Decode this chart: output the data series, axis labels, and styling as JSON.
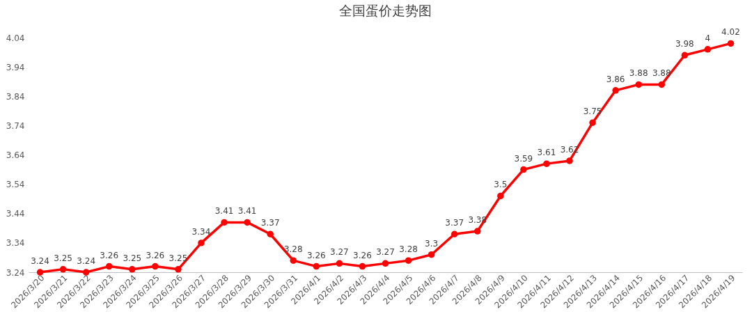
{
  "chart_data": {
    "type": "line",
    "title": "全国蛋价走势图",
    "categories": [
      "2026/3/20",
      "2026/3/21",
      "2026/3/22",
      "2026/3/23",
      "2026/3/24",
      "2026/3/25",
      "2026/3/26",
      "2026/3/27",
      "2026/3/28",
      "2026/3/29",
      "2026/3/30",
      "2026/3/31",
      "2026/4/1",
      "2026/4/2",
      "2026/4/3",
      "2026/4/4",
      "2026/4/5",
      "2026/4/6",
      "2026/4/7",
      "2026/4/8",
      "2026/4/9",
      "2026/4/10",
      "2026/4/11",
      "2026/4/12",
      "2026/4/13",
      "2026/4/14",
      "2026/4/15",
      "2026/4/16",
      "2026/4/17",
      "2026/4/18",
      "2026/4/19"
    ],
    "series": [
      {
        "color": "#ff0000",
        "values": [
          3.24,
          3.25,
          3.24,
          3.26,
          3.25,
          3.26,
          3.25,
          3.34,
          3.41,
          3.41,
          3.37,
          3.28,
          3.26,
          3.27,
          3.26,
          3.27,
          3.28,
          3.3,
          3.37,
          3.38,
          3.5,
          3.59,
          3.61,
          3.62,
          3.75,
          3.86,
          3.88,
          3.88,
          3.98,
          4,
          4.02
        ]
      }
    ],
    "ylim": [
      3.24,
      4.04
    ],
    "yticks": [
      3.24,
      3.34,
      3.44,
      3.54,
      3.64,
      3.74,
      3.84,
      3.94,
      4.04
    ],
    "grid": false,
    "legend": false,
    "marker": "circle",
    "line_style": "solid",
    "data_labels": true
  }
}
